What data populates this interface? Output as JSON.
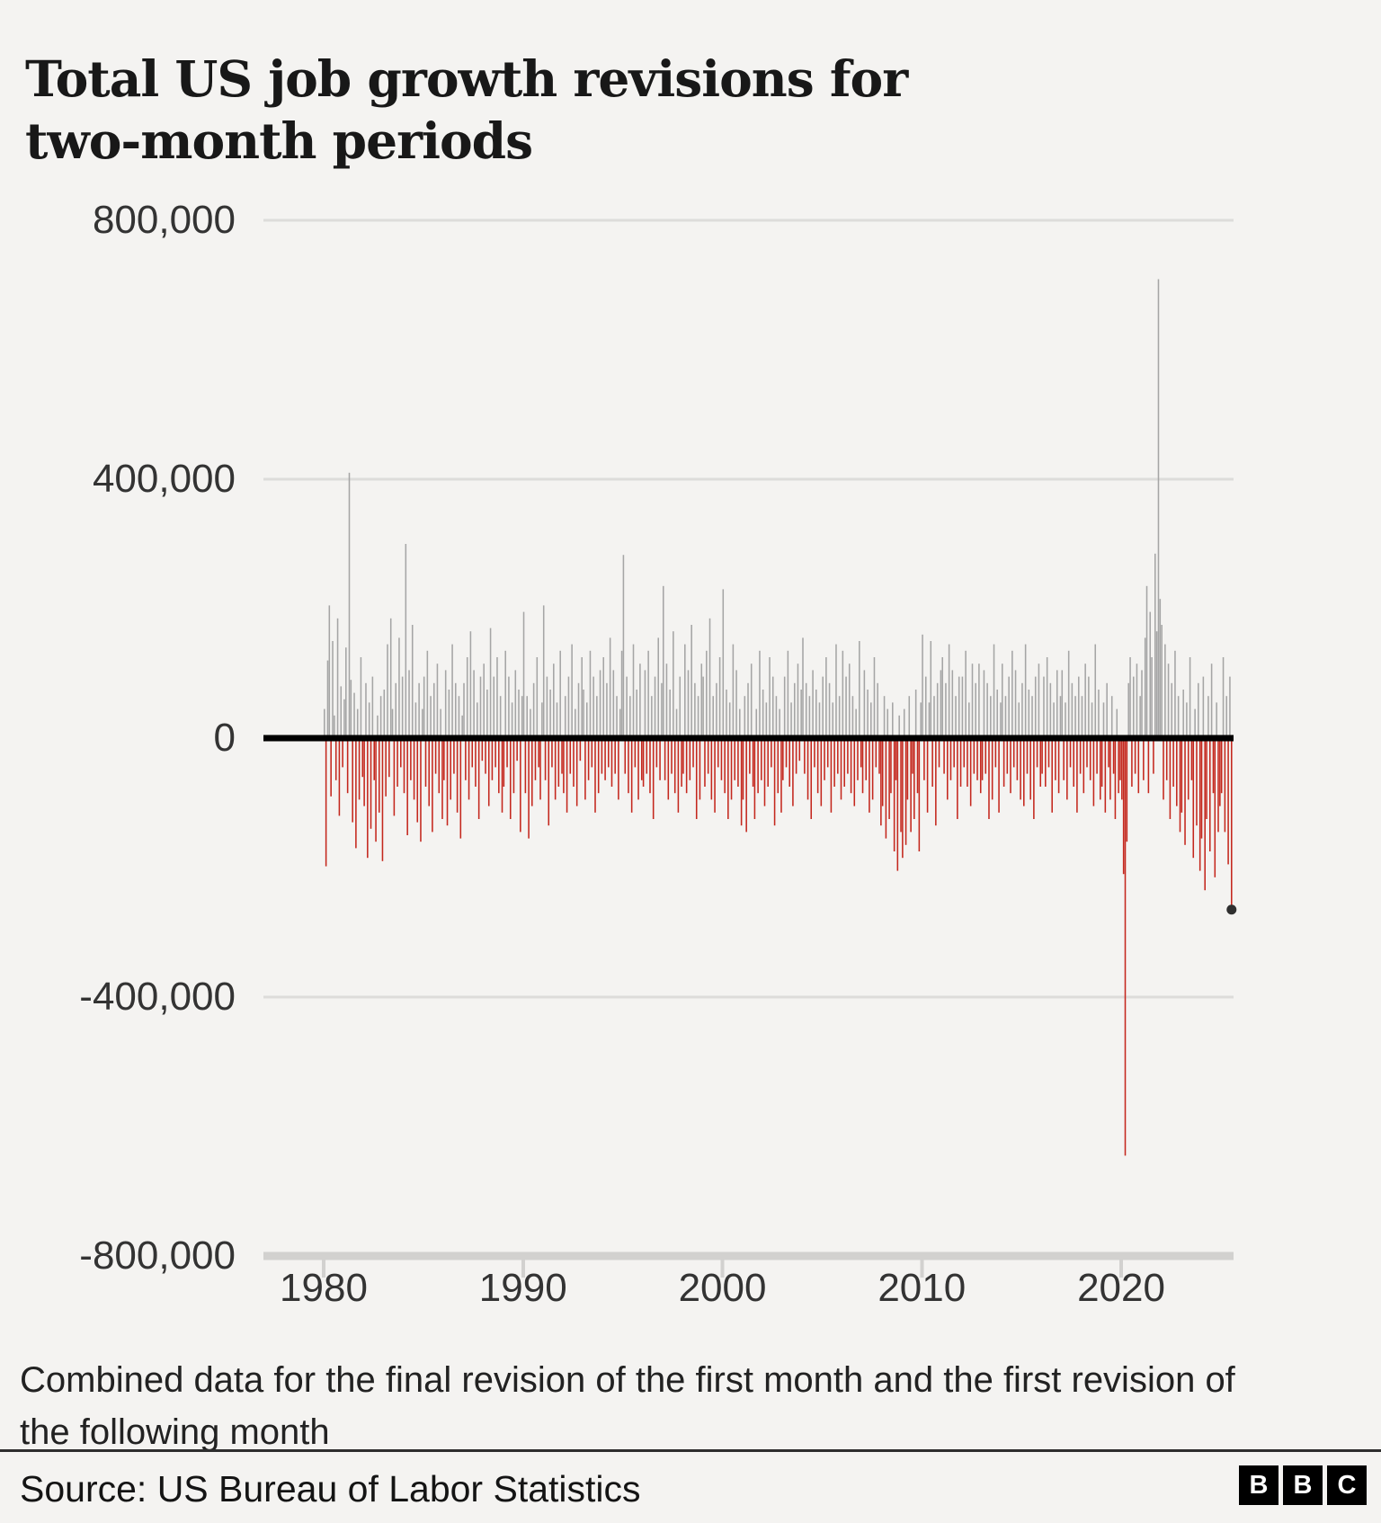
{
  "title_lines": [
    "Total US job growth revisions for",
    "two-month periods"
  ],
  "caption_lines": [
    "Combined data for the final revision of the first month and the first revision of",
    "the following month"
  ],
  "source": "Source: US Bureau of Labor Statistics",
  "logo_letters": [
    "B",
    "B",
    "C"
  ],
  "chart_data": {
    "type": "bar",
    "title": "Total US job growth revisions for two-month periods",
    "xlabel": "",
    "ylabel": "",
    "ylim": [
      -800000,
      800000
    ],
    "grid": "horizontal",
    "legend": "none",
    "value_unit": 1000,
    "unit_note": "bar values are in thousands of jobs (multiply by 1,000)",
    "start_year": 1980,
    "start_month": 1,
    "frequency": "monthly",
    "y_ticks": [
      {
        "label": "800,000",
        "value": 800000
      },
      {
        "label": "400,000",
        "value": 400000
      },
      {
        "label": "0",
        "value": 0
      },
      {
        "label": "-400,000",
        "value": -400000
      },
      {
        "label": "-800,000",
        "value": -800000
      }
    ],
    "x_ticks": [
      {
        "label": "1980",
        "value": 1980
      },
      {
        "label": "1990",
        "value": 1990
      },
      {
        "label": "2000",
        "value": 2000
      },
      {
        "label": "2010",
        "value": 2010
      },
      {
        "label": "2020",
        "value": 2020
      }
    ],
    "colors": {
      "positive": "#a5a5a5",
      "negative": "#c4271d",
      "zero_line": "#000000",
      "grid": "#dddcda",
      "axis": "#d2d1cf",
      "dot": "#2f2f2f",
      "background": "#f4f3f1"
    },
    "highlight_last_point": true,
    "values": [
      45,
      -198,
      120,
      205,
      -90,
      150,
      35,
      -65,
      185,
      -120,
      80,
      -45,
      60,
      140,
      -85,
      410,
      90,
      -130,
      70,
      -170,
      45,
      -95,
      125,
      -60,
      -105,
      85,
      -185,
      55,
      -140,
      95,
      -65,
      -160,
      35,
      -115,
      65,
      -190,
      75,
      -90,
      145,
      -60,
      185,
      45,
      -120,
      85,
      -75,
      155,
      -45,
      95,
      -85,
      300,
      -150,
      105,
      -65,
      175,
      -95,
      55,
      -130,
      85,
      -160,
      45,
      95,
      -75,
      135,
      -105,
      65,
      -145,
      85,
      -55,
      115,
      -85,
      45,
      -125,
      -65,
      105,
      -135,
      75,
      -95,
      145,
      -55,
      85,
      -115,
      65,
      -155,
      35,
      85,
      -65,
      125,
      -95,
      165,
      -45,
      105,
      -75,
      55,
      -125,
      95,
      -35,
      115,
      -55,
      75,
      -105,
      170,
      -65,
      95,
      -45,
      125,
      -85,
      65,
      -115,
      -75,
      135,
      -45,
      95,
      -125,
      55,
      -85,
      105,
      -35,
      75,
      -145,
      65,
      195,
      -85,
      65,
      -155,
      45,
      -105,
      85,
      -65,
      125,
      -45,
      -95,
      55,
      205,
      -65,
      95,
      -135,
      75,
      -45,
      115,
      -95,
      55,
      -75,
      135,
      -55,
      -85,
      65,
      -115,
      95,
      -55,
      145,
      -75,
      45,
      -105,
      85,
      -35,
      125,
      75,
      -95,
      55,
      -65,
      135,
      -45,
      95,
      -115,
      65,
      -85,
      105,
      -55,
      125,
      -65,
      85,
      -45,
      155,
      -75,
      105,
      -55,
      65,
      -95,
      45,
      135,
      283,
      -55,
      95,
      -85,
      65,
      -115,
      145,
      -45,
      75,
      -95,
      115,
      -65,
      -75,
      105,
      -55,
      135,
      -85,
      65,
      -125,
      95,
      -45,
      155,
      -65,
      85,
      235,
      -65,
      115,
      -95,
      75,
      -55,
      165,
      -85,
      45,
      -115,
      95,
      -75,
      -55,
      145,
      -85,
      105,
      -65,
      175,
      -45,
      85,
      -125,
      65,
      -95,
      115,
      95,
      -75,
      135,
      -55,
      185,
      -95,
      65,
      -115,
      85,
      -45,
      125,
      -65,
      230,
      -85,
      75,
      -125,
      55,
      -95,
      145,
      -65,
      105,
      -75,
      45,
      -135,
      -95,
      65,
      -145,
      85,
      -55,
      115,
      -75,
      -125,
      45,
      -85,
      135,
      -65,
      75,
      -105,
      55,
      -75,
      125,
      -45,
      95,
      -135,
      65,
      -85,
      45,
      -115,
      -65,
      95,
      -45,
      135,
      -75,
      55,
      -105,
      85,
      -55,
      115,
      -35,
      75,
      155,
      -55,
      85,
      -95,
      65,
      -125,
      105,
      -45,
      75,
      -85,
      55,
      -105,
      95,
      -65,
      125,
      -45,
      85,
      -115,
      55,
      -75,
      145,
      -55,
      65,
      -95,
      135,
      -75,
      95,
      -55,
      115,
      -85,
      65,
      -105,
      45,
      -65,
      150,
      -45,
      -85,
      105,
      -65,
      75,
      -115,
      55,
      -95,
      125,
      -45,
      85,
      -55,
      -135,
      -105,
      65,
      -155,
      45,
      -125,
      -85,
      55,
      -175,
      -65,
      -205,
      35,
      -145,
      -185,
      45,
      -165,
      -95,
      65,
      -145,
      -55,
      -125,
      75,
      -85,
      -175,
      55,
      160,
      -65,
      95,
      -115,
      55,
      150,
      -75,
      65,
      -135,
      85,
      -45,
      105,
      125,
      -55,
      85,
      -95,
      145,
      -65,
      105,
      -45,
      65,
      -125,
      95,
      -75,
      95,
      -45,
      135,
      -75,
      55,
      -105,
      115,
      -55,
      85,
      -65,
      115,
      -85,
      -65,
      105,
      -55,
      85,
      -125,
      65,
      -95,
      145,
      -45,
      75,
      -115,
      55,
      115,
      -75,
      65,
      -55,
      95,
      -85,
      135,
      -45,
      105,
      -65,
      55,
      -95,
      85,
      -105,
      145,
      -55,
      75,
      -95,
      65,
      -125,
      95,
      -45,
      115,
      -75,
      -55,
      95,
      -75,
      125,
      -45,
      85,
      -115,
      55,
      -65,
      105,
      -85,
      65,
      105,
      -65,
      55,
      -95,
      135,
      -45,
      85,
      -75,
      65,
      -115,
      95,
      -55,
      65,
      -85,
      115,
      -45,
      95,
      -65,
      55,
      -105,
      145,
      -55,
      75,
      -95,
      -75,
      55,
      -115,
      85,
      -45,
      -95,
      65,
      -55,
      -125,
      45,
      -85,
      -65,
      -95,
      -210,
      -645,
      -160,
      85,
      125,
      -75,
      95,
      -55,
      115,
      -85,
      65,
      105,
      -65,
      155,
      235,
      -85,
      195,
      125,
      -55,
      285,
      165,
      709,
      215,
      175,
      -95,
      145,
      -65,
      115,
      -125,
      85,
      -75,
      135,
      -105,
      65,
      -145,
      -115,
      75,
      -165,
      55,
      -95,
      125,
      -65,
      -185,
      45,
      -135,
      85,
      -205,
      -155,
      95,
      -235,
      -125,
      65,
      -175,
      115,
      -85,
      -215,
      55,
      -145,
      -105,
      -85,
      125,
      -145,
      65,
      -195,
      95,
      -258
    ]
  }
}
